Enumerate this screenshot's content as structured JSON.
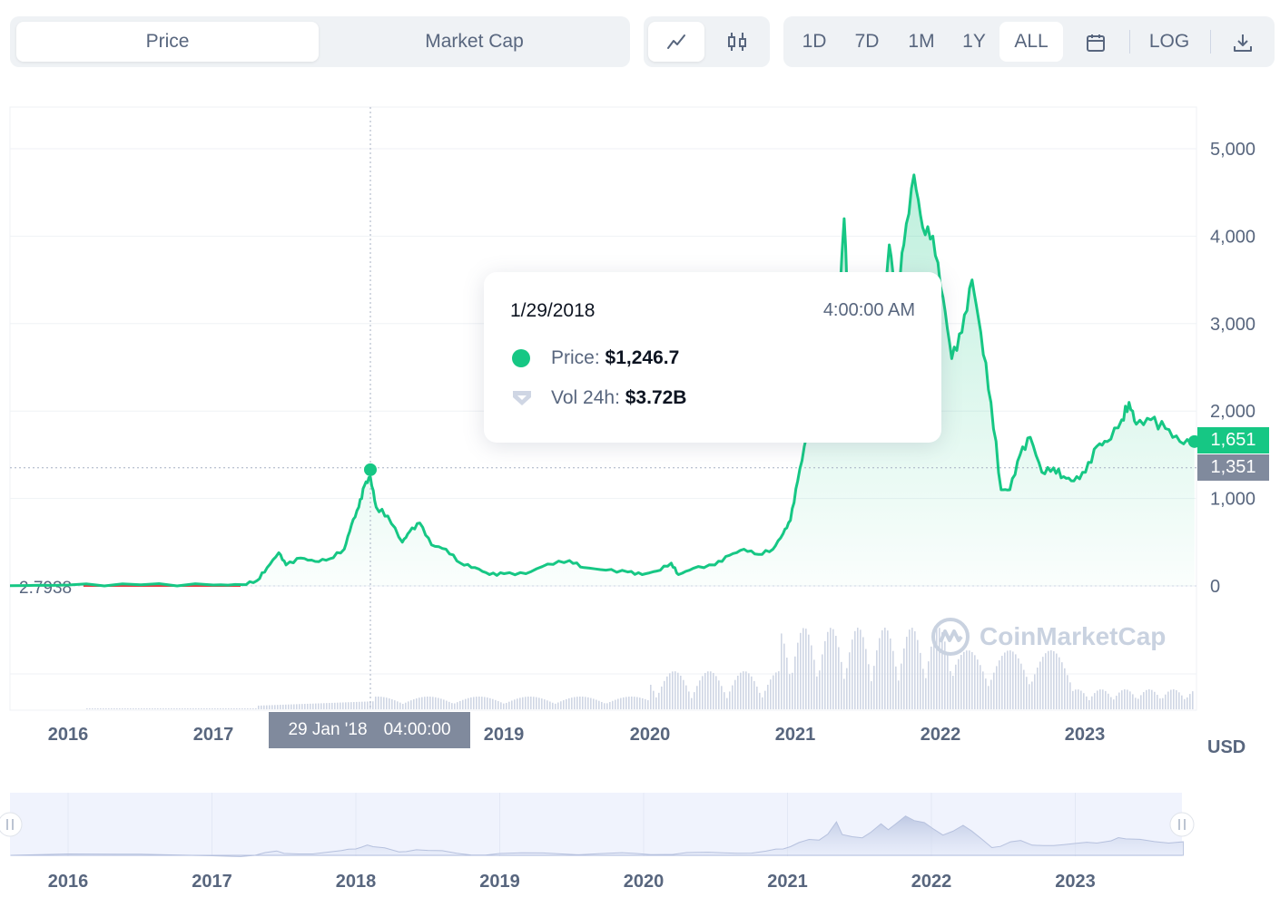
{
  "toolbar": {
    "type_tabs": [
      "Price",
      "Market Cap"
    ],
    "range_buttons": [
      "1D",
      "7D",
      "1M",
      "1Y",
      "ALL"
    ],
    "log_label": "LOG",
    "active_range": "ALL",
    "chart_icons": [
      "line-chart-icon",
      "candlestick-icon"
    ],
    "extra_icons": [
      "calendar-icon",
      "download-icon"
    ]
  },
  "tooltip": {
    "date": "1/29/2018",
    "time": "4:00:00 AM",
    "price_label": "Price:",
    "price_value": "$1,246.7",
    "volume_label": "Vol 24h:",
    "volume_value": "$3.72B"
  },
  "crosshair": {
    "date_label": "29 Jan '18",
    "time_label": "04:00:00",
    "value_label": "1,351"
  },
  "current_price_label": "1,651",
  "start_label": "2.7938",
  "currency": "USD",
  "watermark": "CoinMarketCap",
  "colors": {
    "line": "#16c784",
    "tag_green": "#16c784",
    "tag_grey": "#808a9d",
    "start_red": "#ea3943"
  },
  "chart_data": {
    "type": "line",
    "x_ticks": [
      "2016",
      "2017",
      "2019",
      "2020",
      "2021",
      "2022",
      "2023"
    ],
    "navigator_ticks": [
      "2016",
      "2017",
      "2018",
      "2019",
      "2020",
      "2021",
      "2022",
      "2023"
    ],
    "y_ticks": [
      "0",
      "1,000",
      "2,000",
      "3,000",
      "4,000",
      "5,000"
    ],
    "ylim": [
      0,
      5000
    ],
    "xlim": [
      2015.6,
      2023.75
    ],
    "series": [
      {
        "values": [
          [
            2015.6,
            3
          ],
          [
            2016.0,
            10
          ],
          [
            2016.5,
            12
          ],
          [
            2017.0,
            10
          ],
          [
            2017.2,
            15
          ],
          [
            2017.3,
            60
          ],
          [
            2017.37,
            210
          ],
          [
            2017.45,
            380
          ],
          [
            2017.5,
            240
          ],
          [
            2017.6,
            320
          ],
          [
            2017.7,
            280
          ],
          [
            2017.8,
            310
          ],
          [
            2017.9,
            420
          ],
          [
            2017.95,
            700
          ],
          [
            2018.0,
            900
          ],
          [
            2018.04,
            1150
          ],
          [
            2018.08,
            1246
          ],
          [
            2018.12,
            900
          ],
          [
            2018.2,
            800
          ],
          [
            2018.3,
            500
          ],
          [
            2018.35,
            620
          ],
          [
            2018.42,
            720
          ],
          [
            2018.5,
            470
          ],
          [
            2018.6,
            420
          ],
          [
            2018.7,
            260
          ],
          [
            2018.8,
            210
          ],
          [
            2018.9,
            130
          ],
          [
            2019.0,
            140
          ],
          [
            2019.15,
            140
          ],
          [
            2019.3,
            250
          ],
          [
            2019.45,
            290
          ],
          [
            2019.55,
            210
          ],
          [
            2019.7,
            180
          ],
          [
            2019.85,
            160
          ],
          [
            2019.95,
            130
          ],
          [
            2020.05,
            170
          ],
          [
            2020.15,
            260
          ],
          [
            2020.2,
            130
          ],
          [
            2020.3,
            200
          ],
          [
            2020.45,
            240
          ],
          [
            2020.55,
            350
          ],
          [
            2020.65,
            420
          ],
          [
            2020.75,
            360
          ],
          [
            2020.85,
            420
          ],
          [
            2020.92,
            600
          ],
          [
            2020.97,
            750
          ],
          [
            2021.02,
            1200
          ],
          [
            2021.08,
            1700
          ],
          [
            2021.15,
            1900
          ],
          [
            2021.22,
            1700
          ],
          [
            2021.28,
            2500
          ],
          [
            2021.34,
            4200
          ],
          [
            2021.38,
            2700
          ],
          [
            2021.45,
            2300
          ],
          [
            2021.52,
            2000
          ],
          [
            2021.58,
            2700
          ],
          [
            2021.65,
            3900
          ],
          [
            2021.7,
            3300
          ],
          [
            2021.75,
            3900
          ],
          [
            2021.82,
            4700
          ],
          [
            2021.88,
            4100
          ],
          [
            2021.95,
            4000
          ],
          [
            2022.02,
            3300
          ],
          [
            2022.08,
            2600
          ],
          [
            2022.15,
            2900
          ],
          [
            2022.22,
            3500
          ],
          [
            2022.28,
            2900
          ],
          [
            2022.35,
            2100
          ],
          [
            2022.42,
            1100
          ],
          [
            2022.48,
            1100
          ],
          [
            2022.55,
            1500
          ],
          [
            2022.62,
            1700
          ],
          [
            2022.7,
            1300
          ],
          [
            2022.78,
            1350
          ],
          [
            2022.85,
            1250
          ],
          [
            2022.92,
            1200
          ],
          [
            2023.0,
            1300
          ],
          [
            2023.08,
            1600
          ],
          [
            2023.15,
            1650
          ],
          [
            2023.25,
            1900
          ],
          [
            2023.3,
            2100
          ],
          [
            2023.35,
            1850
          ],
          [
            2023.45,
            1900
          ],
          [
            2023.55,
            1800
          ],
          [
            2023.65,
            1650
          ],
          [
            2023.75,
            1651
          ]
        ]
      }
    ],
    "volume_series": {
      "name": "Vol 24h"
    }
  }
}
